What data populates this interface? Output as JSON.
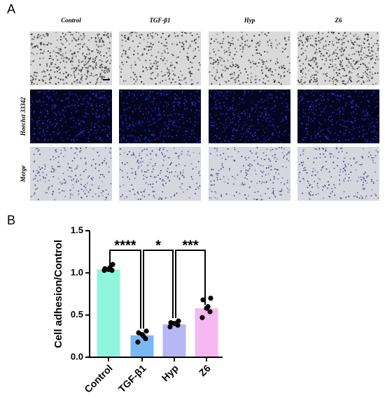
{
  "panel_labels": [
    "A",
    "B"
  ],
  "panel_a": {
    "columns": [
      "Control",
      "TGF-β1",
      "Hyp",
      "Z6"
    ],
    "rows": [
      "Hoechst 33342",
      "Merge"
    ]
  },
  "chart_data": {
    "type": "bar",
    "y_label": "Cell adhesion/Control",
    "categories": [
      "Control",
      "TGF-β1",
      "Hyp",
      "Z6"
    ],
    "values": [
      1.04,
      0.26,
      0.39,
      0.58
    ],
    "colors": [
      "#8ff5dc",
      "#7ab8f5",
      "#b8b6f5",
      "#f5b8f0"
    ],
    "points": [
      [
        1.1,
        1.05,
        1.04,
        1.03,
        1.03,
        1.06
      ],
      [
        0.31,
        0.29,
        0.27,
        0.22,
        0.18,
        0.25
      ],
      [
        0.43,
        0.41,
        0.4,
        0.38,
        0.36,
        0.4
      ],
      [
        0.7,
        0.68,
        0.58,
        0.54,
        0.47,
        0.6
      ]
    ],
    "annotations": [
      "****",
      "*",
      "***"
    ],
    "ylim": [
      0,
      1.5
    ],
    "yticks": [
      {
        "value": 0,
        "label": "0.0"
      },
      {
        "value": 0.5,
        "label": "0.5"
      },
      {
        "value": 1,
        "label": "1.0"
      },
      {
        "value": 1.5,
        "label": "1.5"
      }
    ]
  }
}
